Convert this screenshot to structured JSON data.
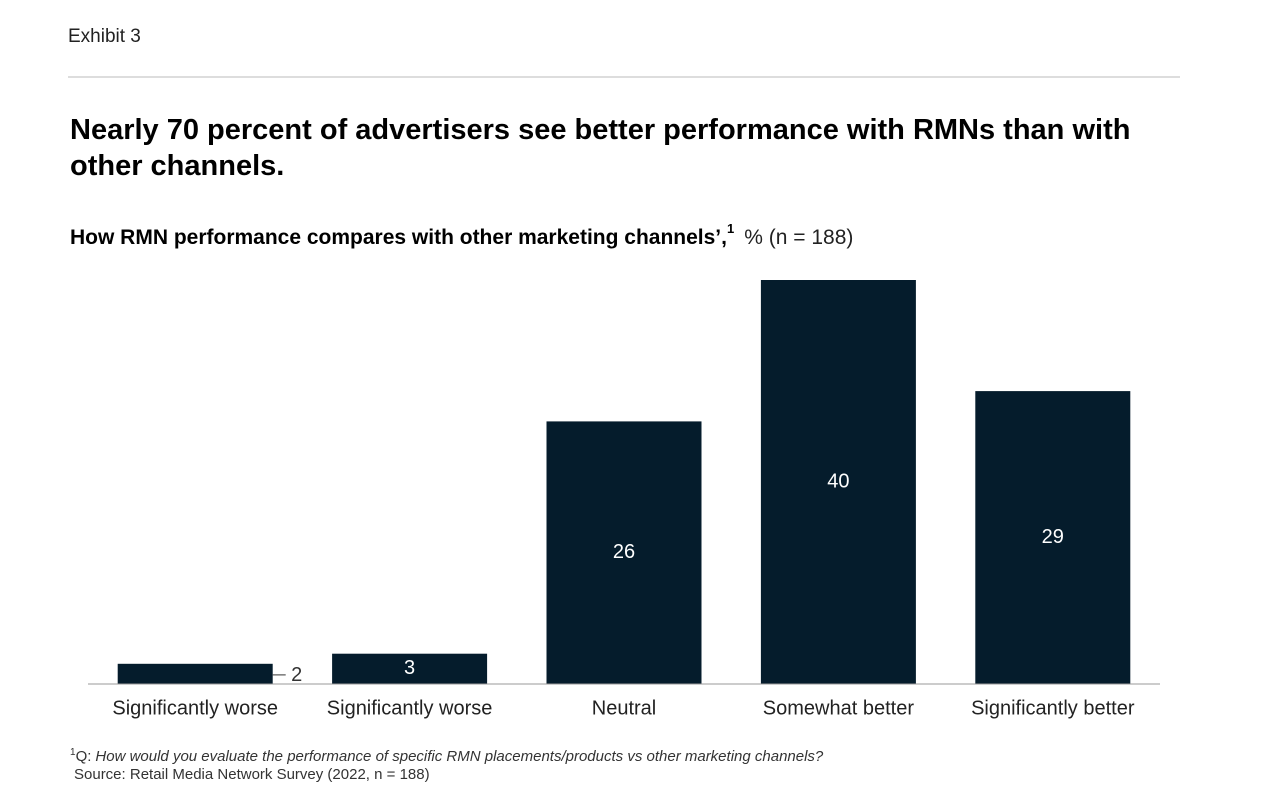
{
  "exhibit": "Exhibit 3",
  "chart_data": {
    "type": "bar",
    "title": "Nearly 70 percent of advertisers see better performance with RMNs than with other channels.",
    "subtitle": "How RMN performance compares with other marketing channels’,",
    "subtitle_note_marker": "1",
    "subtitle_unit": "% (n = 188)",
    "categories": [
      "Significantly worse",
      "Significantly worse",
      "Neutral",
      "Somewhat better",
      "Significantly better"
    ],
    "values": [
      2,
      3,
      26,
      40,
      29
    ],
    "color": "#051c2c"
  },
  "footnote": {
    "marker": "1",
    "prefix": "Q:",
    "question": "How would you evaluate the performance of specific RMN placements/products vs other marketing channels?",
    "source": "Source: Retail Media Network Survey (2022, n = 188)"
  }
}
